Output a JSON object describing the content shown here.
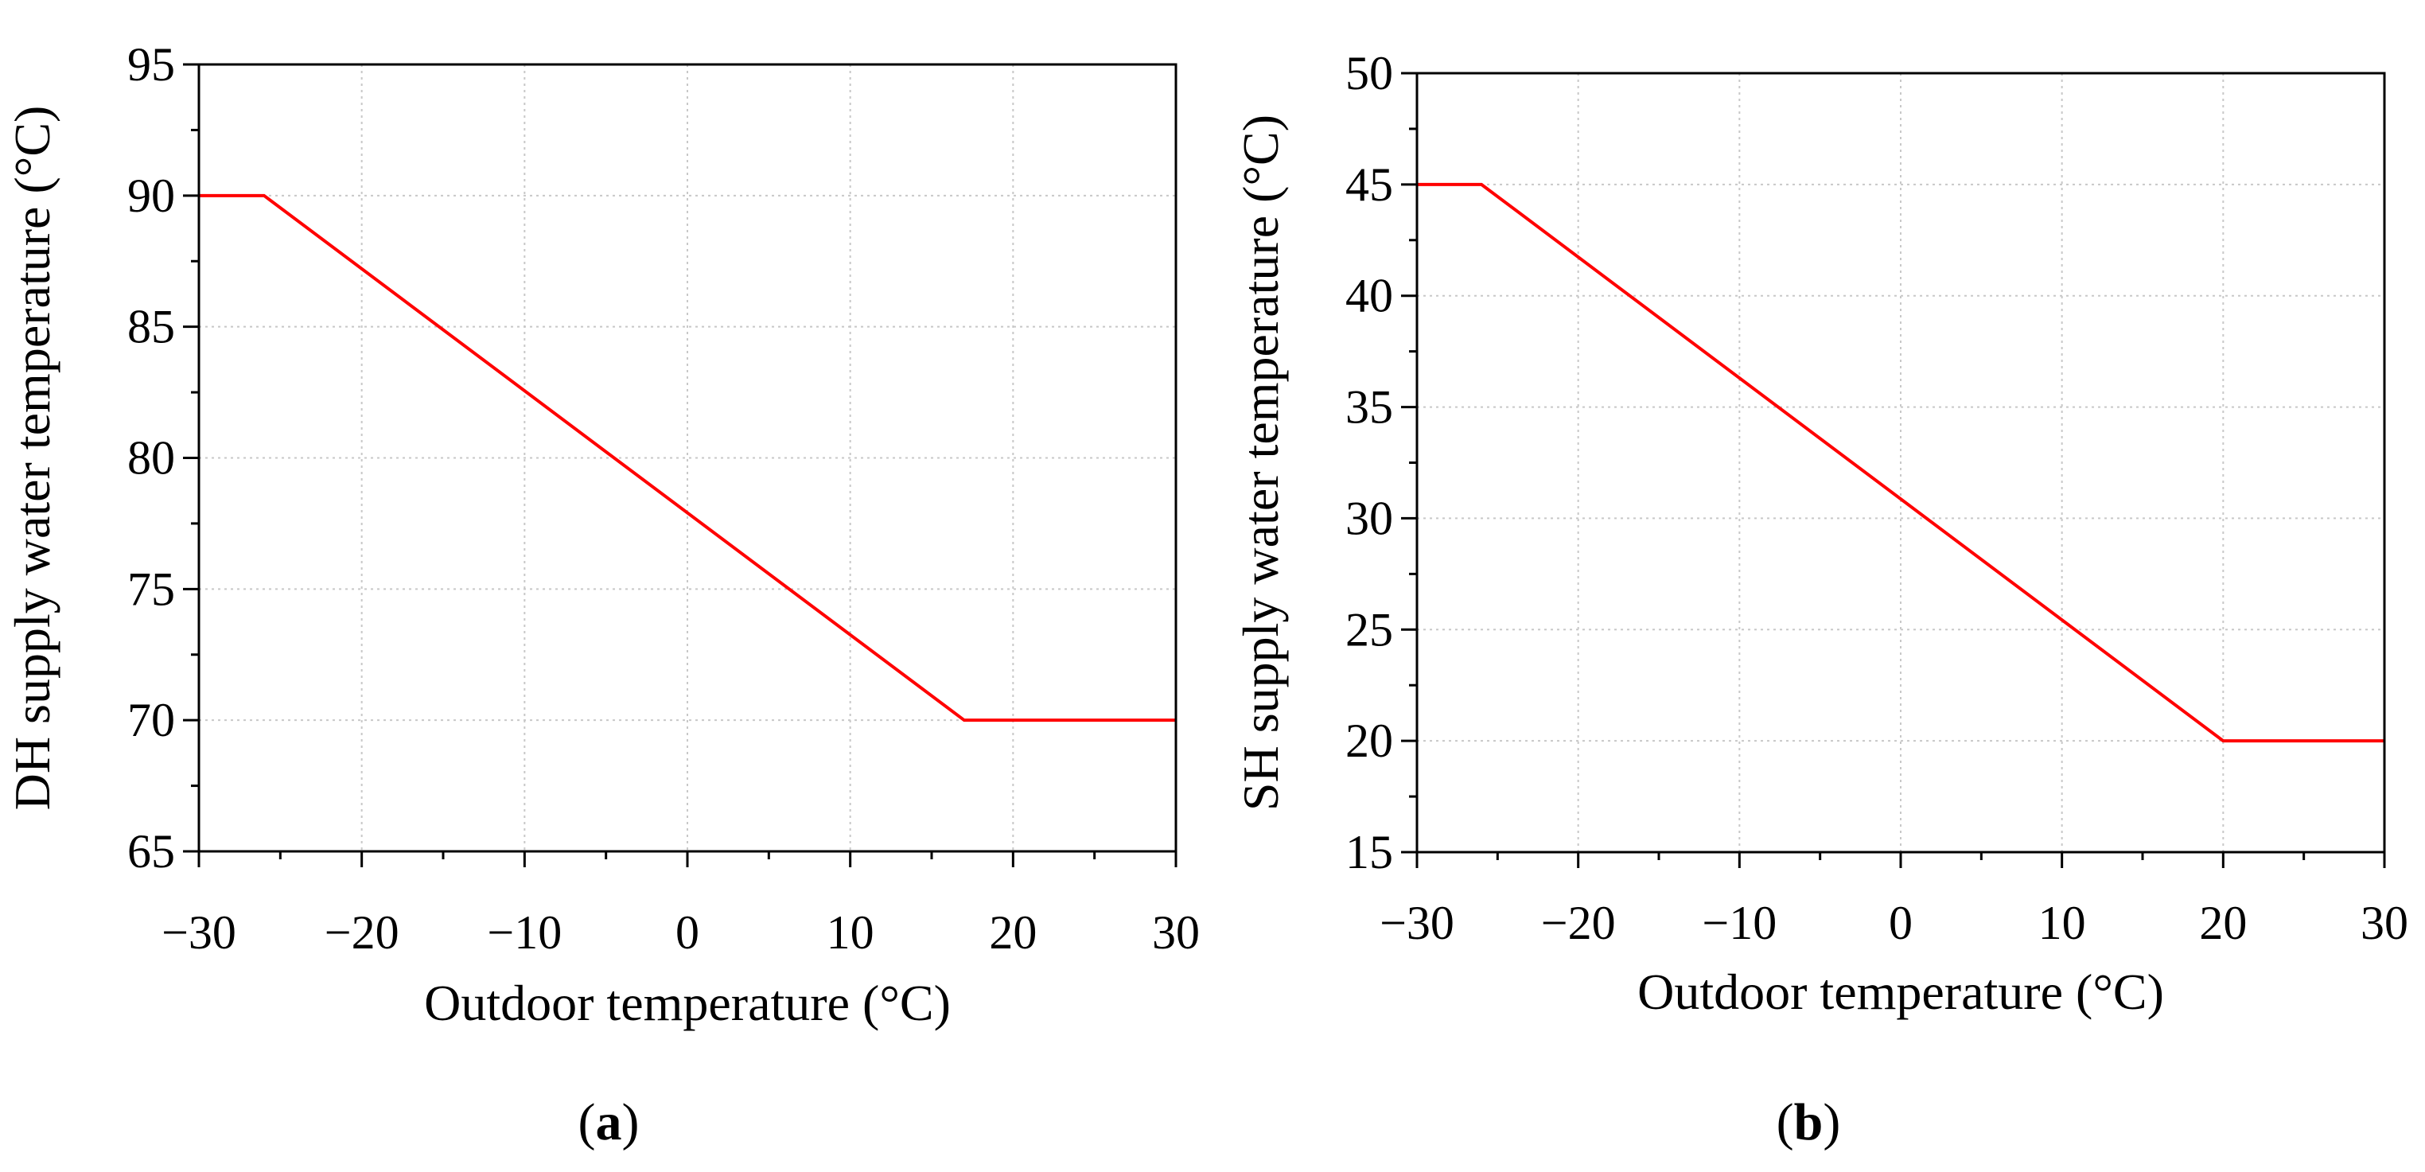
{
  "colors": {
    "line": "#ff0000",
    "axis": "#000000",
    "grid": "#c8c8c8",
    "background": "#ffffff"
  },
  "chart_data": [
    {
      "type": "line",
      "panel_label_prefix": "(",
      "panel_label_letter": "a",
      "panel_label_suffix": ")",
      "xlabel": "Outdoor temperature (°C)",
      "ylabel": "DH supply water temperature (°C)",
      "xlim": [
        -30,
        30
      ],
      "ylim": [
        65,
        95
      ],
      "xticks": [
        -30,
        -20,
        -10,
        0,
        10,
        20,
        30
      ],
      "xtick_labels": [
        "−30",
        "−20",
        "−10",
        "0",
        "10",
        "20",
        "30"
      ],
      "yticks": [
        65,
        70,
        75,
        80,
        85,
        90,
        95
      ],
      "ytick_labels": [
        "65",
        "70",
        "75",
        "80",
        "85",
        "90",
        "95"
      ],
      "grid": true,
      "series": [
        {
          "name": "DH supply water temperature",
          "x": [
            -30,
            -26,
            17,
            30
          ],
          "y": [
            90,
            90,
            70,
            70
          ]
        }
      ]
    },
    {
      "type": "line",
      "panel_label_prefix": "(",
      "panel_label_letter": "b",
      "panel_label_suffix": ")",
      "xlabel": "Outdoor temperature (°C)",
      "ylabel": "SH supply water temperature (°C)",
      "xlim": [
        -30,
        30
      ],
      "ylim": [
        15,
        50
      ],
      "xticks": [
        -30,
        -20,
        -10,
        0,
        10,
        20,
        30
      ],
      "xtick_labels": [
        "−30",
        "−20",
        "−10",
        "0",
        "10",
        "20",
        "30"
      ],
      "yticks": [
        15,
        20,
        25,
        30,
        35,
        40,
        45,
        50
      ],
      "ytick_labels": [
        "15",
        "20",
        "25",
        "30",
        "35",
        "40",
        "45",
        "50"
      ],
      "grid": true,
      "series": [
        {
          "name": "SH supply water temperature",
          "x": [
            -30,
            -26,
            20,
            30
          ],
          "y": [
            45,
            45,
            20,
            20
          ]
        }
      ]
    }
  ]
}
